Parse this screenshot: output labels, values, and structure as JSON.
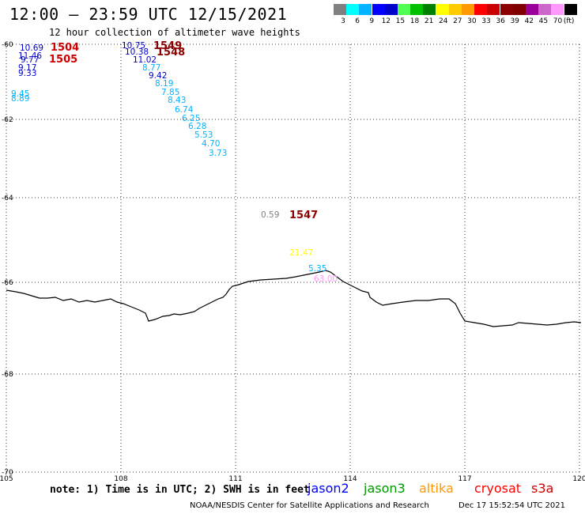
{
  "header": {
    "title": "12:00 – 23:59 UTC 12/15/2021",
    "subtitle": "12 hour collection of altimeter wave heights"
  },
  "legend": {
    "unit": "(ft)",
    "colors": [
      "#808080",
      "#00ffff",
      "#00b4ff",
      "#0000ff",
      "#0000cc",
      "#50ff50",
      "#00c000",
      "#008000",
      "#ffff00",
      "#ffcc00",
      "#ff9900",
      "#ff0000",
      "#cc0000",
      "#8b0000",
      "#800000",
      "#990099",
      "#cc66cc",
      "#ff99ff",
      "#000000"
    ],
    "labels": [
      "3",
      "6",
      "9",
      "12",
      "15",
      "18",
      "21",
      "24",
      "27",
      "30",
      "33",
      "36",
      "39",
      "42",
      "45",
      "70"
    ]
  },
  "map": {
    "lon_ticks": [
      "105",
      "108",
      "111",
      "114",
      "117",
      "120"
    ],
    "lat_ticks": [
      "-60",
      "-62",
      "-64",
      "-66",
      "-68",
      "-70"
    ],
    "lon_range": [
      105,
      120
    ],
    "lat_range": [
      -60,
      -70
    ],
    "grid": true,
    "grid_style": "dotted"
  },
  "observations": [
    {
      "text": "10.69",
      "color": "#0000cc"
    },
    {
      "text": "11.46",
      "color": "#0000cc"
    },
    {
      "text": "9.77",
      "color": "#0000cc"
    },
    {
      "text": "9.17",
      "color": "#0000cc"
    },
    {
      "text": "9.33",
      "color": "#0000cc"
    },
    {
      "text": "9.45",
      "color": "#00b4ff"
    },
    {
      "text": "8.89",
      "color": "#00b4ff"
    },
    {
      "text": "10.75",
      "color": "#0000cc"
    },
    {
      "text": "10.38",
      "color": "#0000cc"
    },
    {
      "text": "11.02",
      "color": "#0000cc"
    },
    {
      "text": "8.77",
      "color": "#00b4ff"
    },
    {
      "text": "9.42",
      "color": "#0000cc"
    },
    {
      "text": "8.19",
      "color": "#00b4ff"
    },
    {
      "text": "7.85",
      "color": "#00b4ff"
    },
    {
      "text": "8.43",
      "color": "#00b4ff"
    },
    {
      "text": "6.74",
      "color": "#00b4ff"
    },
    {
      "text": "6.25",
      "color": "#00b4ff"
    },
    {
      "text": "6.28",
      "color": "#00b4ff"
    },
    {
      "text": "5.53",
      "color": "#00b4ff"
    },
    {
      "text": "4.70",
      "color": "#00b4ff"
    },
    {
      "text": "3.73",
      "color": "#00b4ff"
    },
    {
      "text": "0.59",
      "color": "#808080"
    },
    {
      "text": "21.47",
      "color": "#ffff00"
    },
    {
      "text": "5.35",
      "color": "#00b4ff"
    },
    {
      "text": "63.00",
      "color": "#ff99ff"
    }
  ],
  "pass_labels": [
    {
      "text": "1504",
      "color": "#cc0000"
    },
    {
      "text": "1505",
      "color": "#cc0000"
    },
    {
      "text": "1549",
      "color": "#8b0000"
    },
    {
      "text": "1548",
      "color": "#8b0000"
    },
    {
      "text": "1547",
      "color": "#8b0000"
    }
  ],
  "footer": {
    "note": "note: 1) Time is in UTC; 2) SWH is in feet",
    "satellites": [
      {
        "name": "jason2",
        "color": "#0000ff"
      },
      {
        "name": "jason3",
        "color": "#009900"
      },
      {
        "name": "altika",
        "color": "#ff9900"
      },
      {
        "name": "cryosat",
        "color": "#ff0000"
      },
      {
        "name": "s3a",
        "color": "#cc0000"
      }
    ],
    "credit": "NOAA/NESDIS Center for Satellite Applications and Research",
    "timestamp": "Dec 17 15:52:54 UTC 2021"
  }
}
